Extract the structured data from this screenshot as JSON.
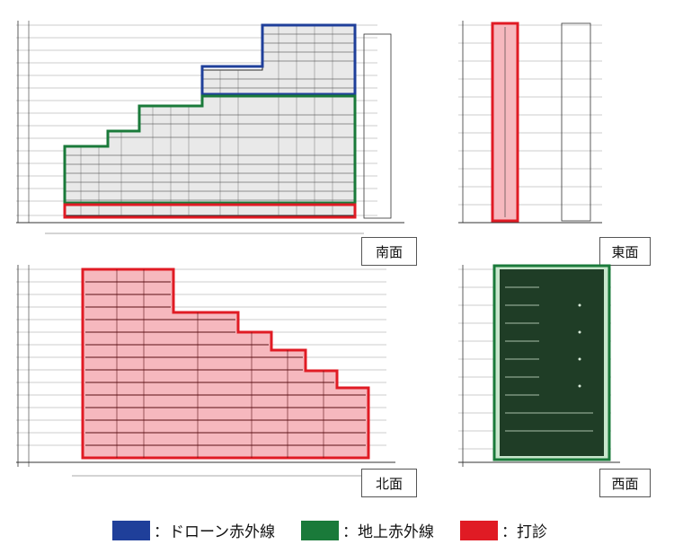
{
  "faces": {
    "south": "南面",
    "east": "東面",
    "north": "北面",
    "west": "西面"
  },
  "legend": [
    {
      "label": "：ドローン赤外線",
      "color": "#1f3f9a"
    },
    {
      "label": "：地上赤外線",
      "color": "#1a7a3a"
    },
    {
      "label": "：打診",
      "color": "#e01b24"
    }
  ],
  "colors": {
    "drone": "#1f3f9a",
    "ground": "#1a7a3a",
    "tap": "#e01b24",
    "tap_fill": "#f6b8be",
    "drawing": "#222222"
  }
}
